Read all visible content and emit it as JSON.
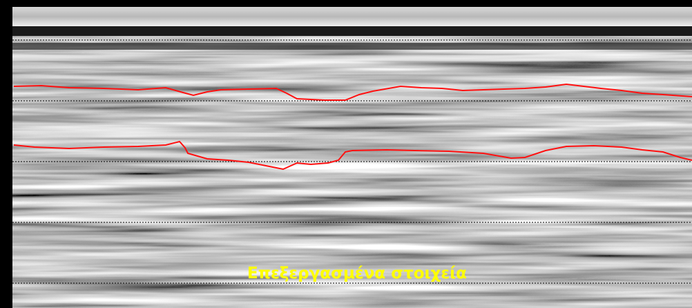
{
  "caption": "Επεξεργασμένα στοιχεία"
}
